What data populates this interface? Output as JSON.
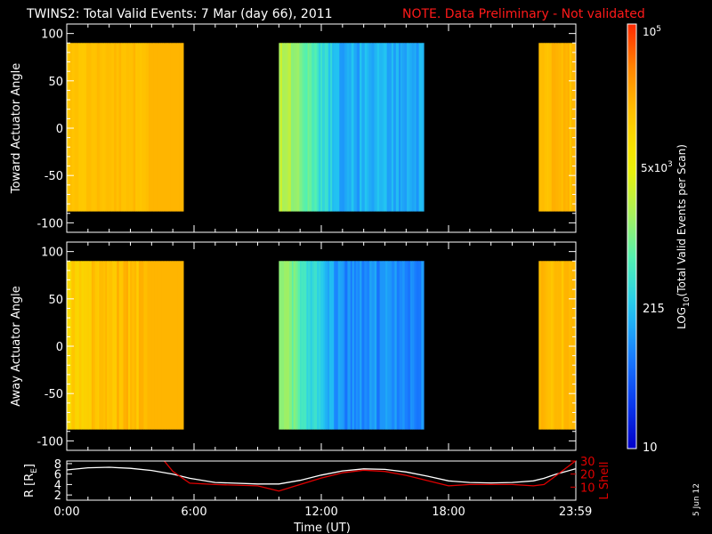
{
  "header": {
    "title": "TWINS2: Total Valid Events:  7 Mar (day  66), 2011",
    "note": "NOTE. Data Preliminary - Not validated"
  },
  "colors": {
    "background": "#000000",
    "foreground": "#ffffff",
    "note": "#ff1a1a",
    "r_curve": "#ffffff",
    "lshell_curve": "#e00000",
    "colormap": [
      "#0000c8",
      "#0a3cf0",
      "#1a80ff",
      "#23c8f0",
      "#50f0b4",
      "#aaf05a",
      "#f0f000",
      "#ffc800",
      "#ff8c00",
      "#ff2800"
    ]
  },
  "colorbar": {
    "label": "LOG10(Total Valid Events per Scan)",
    "label_parts": {
      "pre": "LOG",
      "sub": "10",
      "post": "(Total Valid Events per Scan)"
    },
    "ticks": [
      {
        "value": 10,
        "text": "10"
      },
      {
        "value": 215,
        "text": "215"
      },
      {
        "value": 5000,
        "text": "5x10",
        "sup": "3"
      },
      {
        "value": 100000,
        "text": "10",
        "sup": "5"
      }
    ],
    "scale": "log",
    "range": [
      10,
      100000
    ]
  },
  "footer": {
    "xlabel": "Time (UT)",
    "date_stamp": "5 Jun 12"
  },
  "chart_data": [
    {
      "type": "heatmap",
      "panel": "toward",
      "ylabel": "Toward Actuator Angle",
      "xlim": [
        "0:00",
        "23:59"
      ],
      "ylim": [
        -110,
        110
      ],
      "yticks": [
        "100",
        "50",
        "0",
        "-50",
        "-100"
      ],
      "y_extent": [
        -88,
        90
      ],
      "blocks": [
        {
          "start": "0:00",
          "end": "5:30",
          "log_events_approx": [
            3.9,
            4.2
          ]
        },
        {
          "start": "10:00",
          "end": "16:50",
          "log_events_approx": [
            2.0,
            3.2
          ]
        },
        {
          "start": "22:15",
          "end": "23:59",
          "log_events_approx": [
            3.9,
            4.3
          ]
        }
      ]
    },
    {
      "type": "heatmap",
      "panel": "away",
      "ylabel": "Away Actuator Angle",
      "xlim": [
        "0:00",
        "23:59"
      ],
      "ylim": [
        -110,
        110
      ],
      "yticks": [
        "100",
        "50",
        "0",
        "-50",
        "-100"
      ],
      "y_extent": [
        -88,
        90
      ],
      "blocks": [
        {
          "start": "0:00",
          "end": "5:30",
          "log_events_approx": [
            3.6,
            4.2
          ]
        },
        {
          "start": "10:00",
          "end": "16:50",
          "log_events_approx": [
            1.8,
            3.0
          ]
        },
        {
          "start": "22:15",
          "end": "23:59",
          "log_events_approx": [
            3.9,
            4.3
          ]
        }
      ]
    },
    {
      "type": "line",
      "panel": "orbit",
      "ylabel_left": "R [RE]",
      "ylabel_left_parts": {
        "pre": "R [R",
        "sub": "E",
        "post": "]"
      },
      "ylabel_right": "L Shell",
      "xticks": [
        "0:00",
        "6:00",
        "12:00",
        "18:00",
        "23:59"
      ],
      "yticks_left": [
        "8",
        "6",
        "4",
        "2"
      ],
      "yticks_right": [
        "30",
        "20",
        "10"
      ],
      "ylim_left": [
        1,
        8.5
      ],
      "ylim_right": [
        0,
        30
      ],
      "series": [
        {
          "name": "R [RE]",
          "axis": "left",
          "x": [
            0,
            1,
            2,
            3,
            4,
            5,
            5.8,
            7,
            9,
            10,
            11,
            12,
            13,
            14,
            15,
            16,
            17,
            18,
            19,
            20,
            21,
            22,
            22.5,
            23,
            23.98
          ],
          "y": [
            6.8,
            7.2,
            7.3,
            7.1,
            6.7,
            6.0,
            5.2,
            4.4,
            4.1,
            4.1,
            4.8,
            5.8,
            6.6,
            7.0,
            6.9,
            6.4,
            5.6,
            4.7,
            4.4,
            4.3,
            4.4,
            4.7,
            5.2,
            5.9,
            7.0
          ]
        },
        {
          "name": "L Shell",
          "axis": "right",
          "x": [
            4.6,
            5.0,
            5.8,
            7,
            9,
            10,
            11,
            12,
            13,
            14,
            15,
            16,
            17,
            18,
            19,
            20,
            21,
            22,
            22.5,
            23,
            23.98
          ],
          "y": [
            30,
            22,
            13,
            12,
            11,
            7,
            12,
            17,
            21,
            23,
            22,
            19,
            15,
            11,
            12,
            12,
            12,
            11,
            12,
            18,
            30
          ]
        }
      ]
    }
  ]
}
